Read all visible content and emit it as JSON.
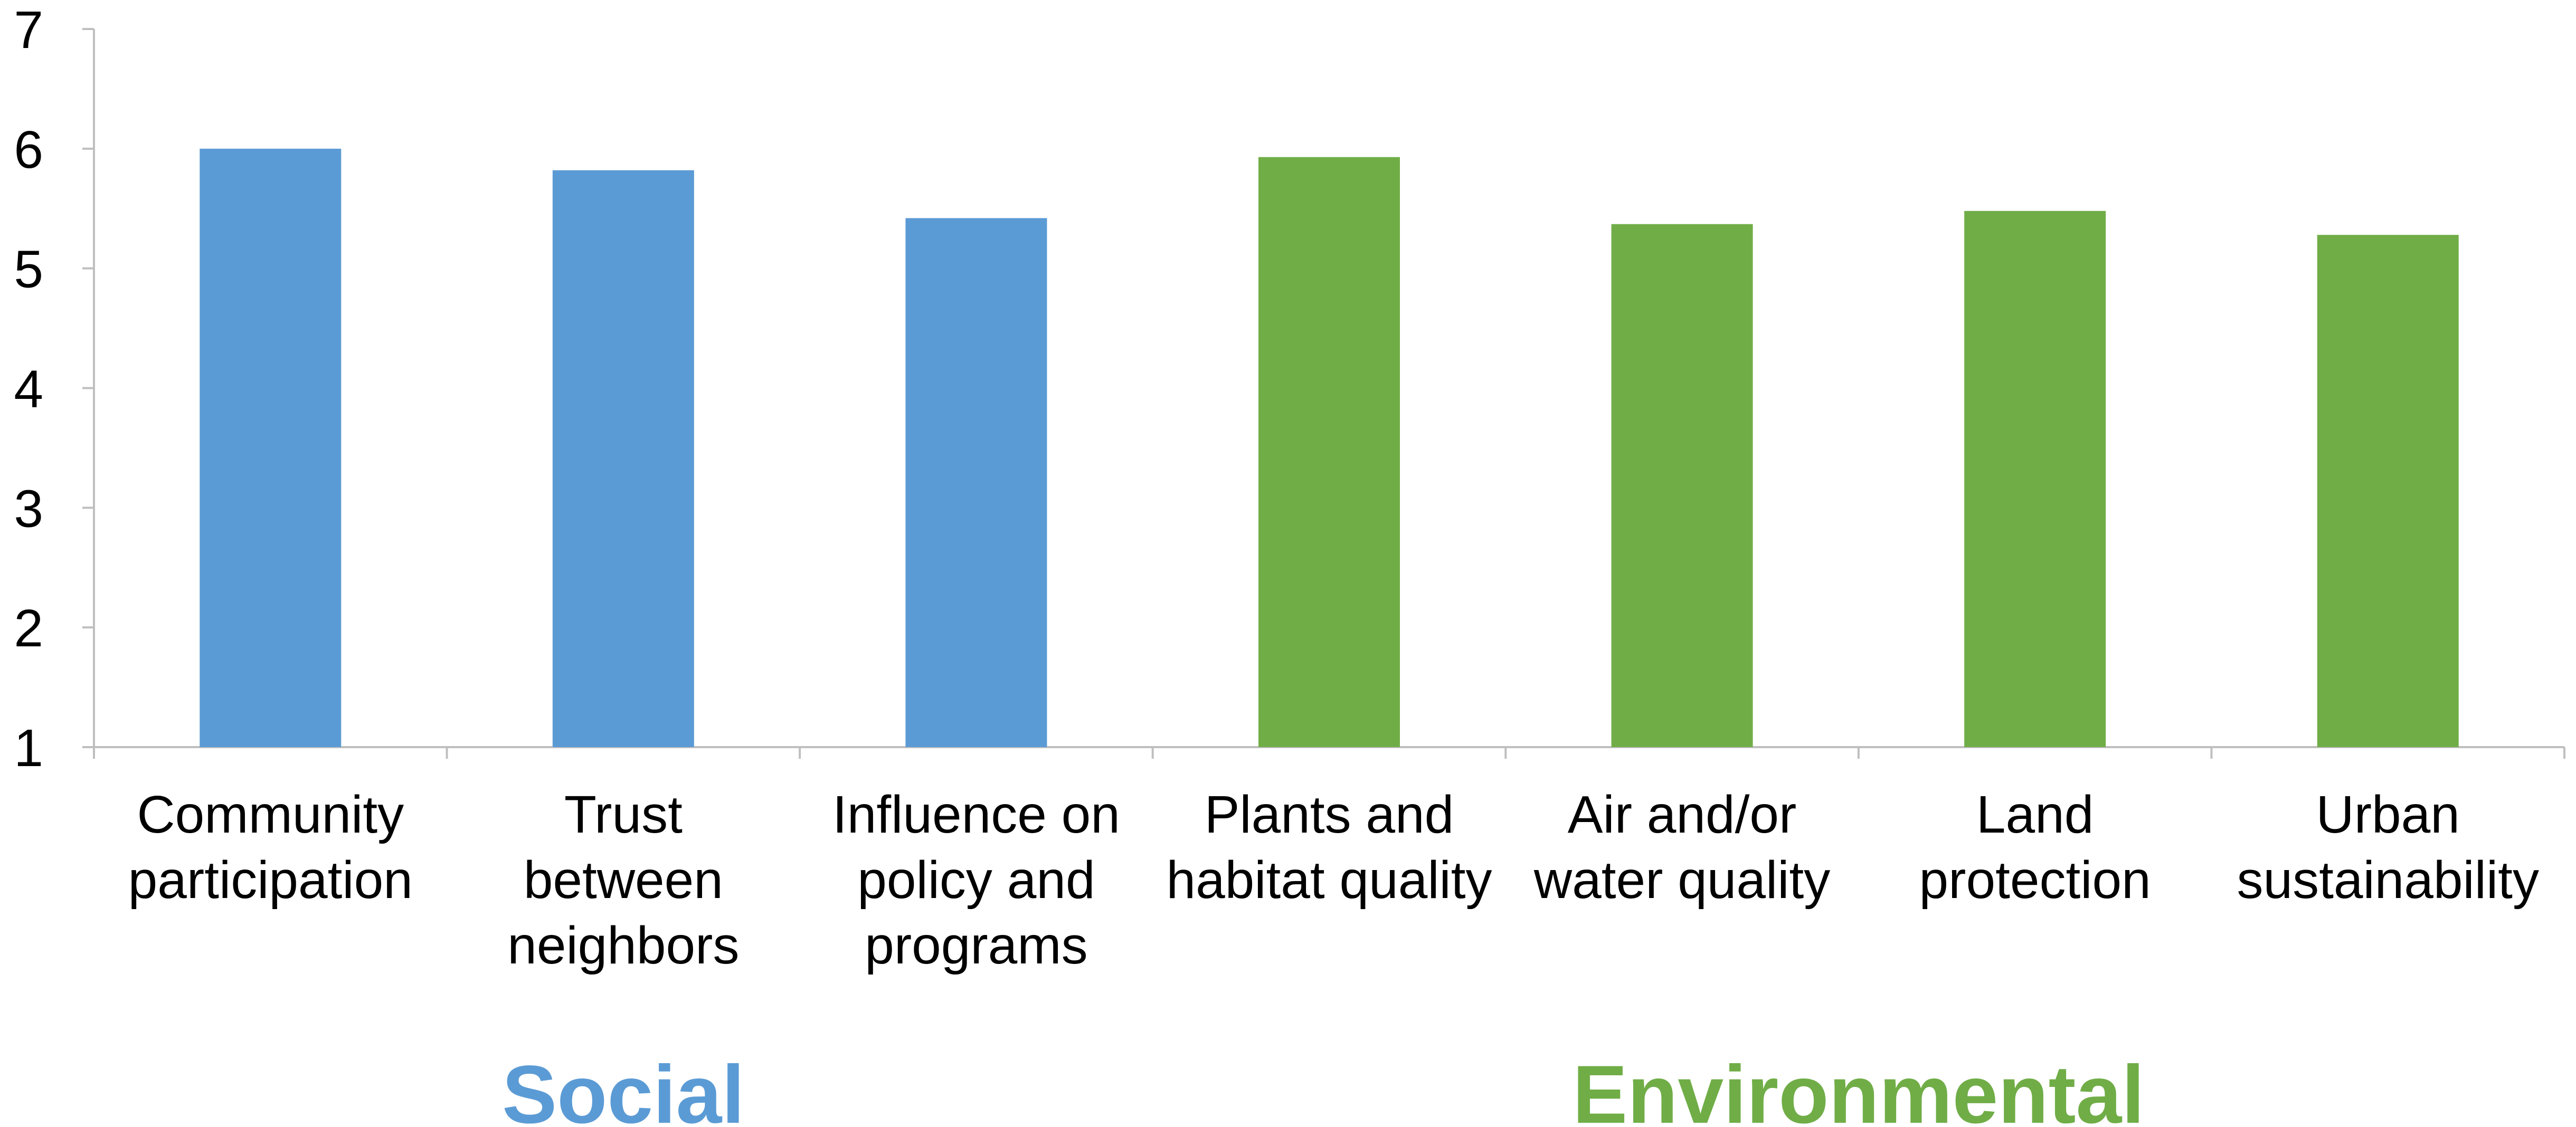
{
  "chart_data": {
    "type": "bar",
    "categories": [
      [
        "Community",
        "participation"
      ],
      [
        "Trust",
        "between",
        "neighbors"
      ],
      [
        "Influence on",
        "policy and",
        "programs"
      ],
      [
        "Plants and",
        "habitat quality"
      ],
      [
        "Air and/or",
        "water quality"
      ],
      [
        "Land",
        "protection"
      ],
      [
        "Urban",
        "sustainability"
      ]
    ],
    "values": [
      6.0,
      5.82,
      5.42,
      5.93,
      5.37,
      5.48,
      5.28
    ],
    "bar_groups": [
      "Social",
      "Social",
      "Social",
      "Environmental",
      "Environmental",
      "Environmental",
      "Environmental"
    ],
    "groups": [
      {
        "label": "Social",
        "color": "#5b9bd5"
      },
      {
        "label": "Environmental",
        "color": "#70ad47"
      }
    ],
    "ylim": [
      1,
      7
    ],
    "yticks": [
      "1",
      "2",
      "3",
      "4",
      "5",
      "6",
      "7"
    ],
    "title": "",
    "xlabel": "",
    "ylabel": "",
    "grid": false,
    "axis_color": "#bfbfbf"
  }
}
